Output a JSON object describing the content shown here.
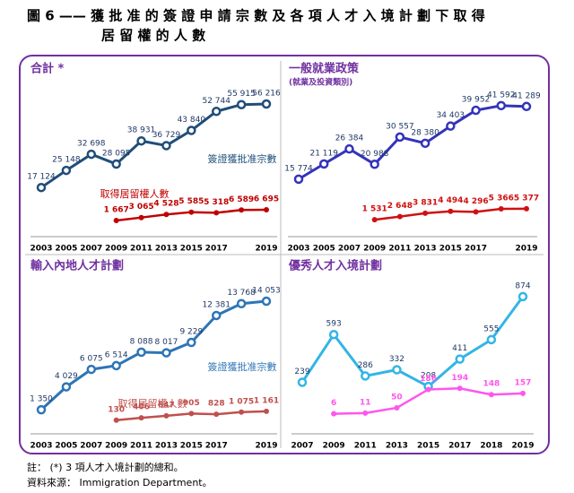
{
  "title": [
    "圖 6 —— 獲 批 准 的 簽 證 申 請 宗 數 及 各 項 人 才 入 境 計 劃 下 取 得",
    "居 留 權 的 人 數"
  ],
  "chart_data": [
    {
      "type": "line",
      "title": "合計 *",
      "categories": [
        "2003",
        "2005",
        "2007",
        "2009",
        "2011",
        "2013",
        "2015",
        "2017",
        null,
        "2019"
      ],
      "ylim": [
        0,
        60000
      ],
      "series": [
        {
          "name": "簽證獲批准宗數",
          "color": "#1f4e79",
          "values": [
            17124,
            25148,
            32698,
            28095,
            38931,
            36729,
            43840,
            52744,
            55915,
            56216
          ],
          "value_labels": [
            "17 124",
            "25 148",
            "32 698",
            "28 095",
            "38 931",
            "36 729",
            "43 840",
            "52 744",
            "55 915",
            "56 216"
          ]
        },
        {
          "name": "取得居留權人數",
          "color": "#c00000",
          "values": [
            null,
            null,
            null,
            1667,
            3065,
            4528,
            5585,
            5318,
            6589,
            6695
          ],
          "value_labels": [
            null,
            null,
            null,
            "1 667",
            "3 065",
            "4 528",
            "5 585",
            "5 318",
            "6 589",
            "6 695"
          ]
        }
      ]
    },
    {
      "type": "line",
      "title": "一般就業政策",
      "subtitle": "(就業及投資類別)",
      "categories": [
        "2003",
        "2005",
        "2007",
        "2009",
        "2011",
        "2013",
        "2015",
        "2017",
        null,
        "2019"
      ],
      "ylim": [
        0,
        45000
      ],
      "series": [
        {
          "name": "簽證獲批准宗數",
          "color": "#3333bb",
          "values": [
            15774,
            21119,
            26384,
            20988,
            30557,
            28380,
            34403,
            39952,
            41592,
            41289
          ],
          "value_labels": [
            "15 774",
            "21 119",
            "26 384",
            "20 988",
            "30 557",
            "28 380",
            "34 403",
            "39 952",
            "41 592",
            "41 289"
          ]
        },
        {
          "name": "取得居留權人數",
          "color": "#d01010",
          "values": [
            null,
            null,
            null,
            1531,
            2648,
            3831,
            4494,
            4296,
            5366,
            5377
          ],
          "value_labels": [
            null,
            null,
            null,
            "1 531",
            "2 648",
            "3 831",
            "4 494",
            "4 296",
            "5 366",
            "5 377"
          ]
        }
      ]
    },
    {
      "type": "line",
      "title": "輸入內地人才計劃",
      "categories": [
        "2003",
        "2005",
        "2007",
        "2009",
        "2011",
        "2013",
        "2015",
        "2017",
        null,
        "2019"
      ],
      "ylim": [
        0,
        15000
      ],
      "series": [
        {
          "name": "簽證獲批准宗數",
          "color": "#2e75b6",
          "values": [
            1350,
            4029,
            6075,
            6514,
            8088,
            8017,
            9229,
            12381,
            13768,
            14053
          ],
          "value_labels": [
            "1 350",
            "4 029",
            "6 075",
            "6 514",
            "8 088",
            "8 017",
            "9 229",
            "12 381",
            "13 768",
            "14 053"
          ]
        },
        {
          "name": "取得居留權人數",
          "color": "#c0504d",
          "values": [
            null,
            null,
            null,
            130,
            406,
            647,
            905,
            828,
            1075,
            1161
          ],
          "value_labels": [
            null,
            null,
            null,
            "130",
            "406",
            "647",
            "905",
            "828",
            "1 075",
            "1 161"
          ]
        }
      ]
    },
    {
      "type": "line",
      "title": "優秀人才入境計劃",
      "categories": [
        "2007",
        "2009",
        "2011",
        "2013",
        "2015",
        "2017",
        "2018",
        "2019"
      ],
      "ylim": [
        -50,
        900
      ],
      "series": [
        {
          "name": "簽證獲批准宗數",
          "color": "#33b5e5",
          "values": [
            239,
            593,
            286,
            332,
            208,
            411,
            555,
            874
          ]
        },
        {
          "name": "取得居留權人數",
          "color": "#ff55ee",
          "values": [
            null,
            6,
            11,
            50,
            186,
            194,
            148,
            157
          ]
        }
      ]
    }
  ],
  "notes": [
    "註：  (*)  3 項人才入境計劃的總和。",
    "資料來源： Immigration Department。"
  ]
}
